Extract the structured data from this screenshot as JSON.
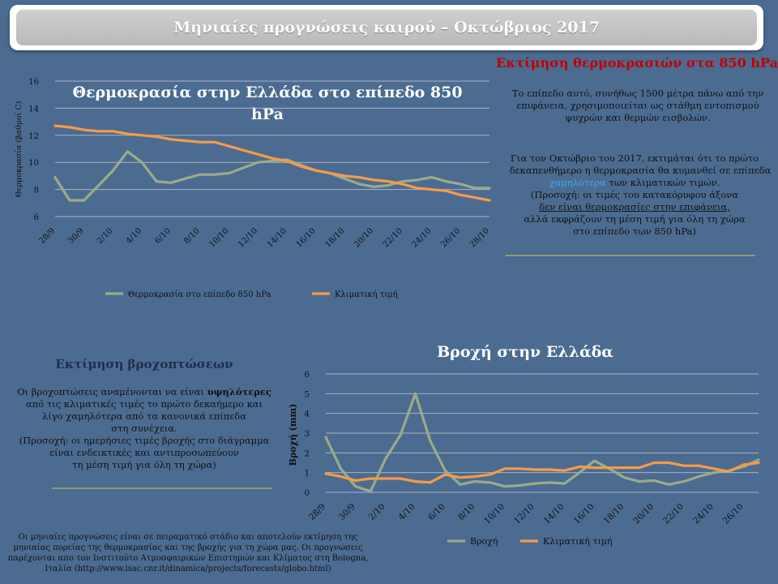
{
  "banner": {
    "title": "Μηνιαίες προγνώσεις καιρού – Οκτώβριος 2017"
  },
  "temp_panel": {
    "heading": "Εκτίμηση θερμοκρασιών στα 850 hPa",
    "para1": "Το επίπεδο αυτό, συνήθως 1500 μέτρα πάνω από την επιφάνεια, χρησιμοποιείται ως στάθμη  εντοπισμού ψυχρών και θερμών εισβολών.",
    "para2_lines": [
      "Για τον Οκτώβριο του 2017, εκτιμάται ότι το πρώτο",
      "δεκαπενθήμερο η θερμοκρασία θα κυμανθεί σε επίπεδα"
    ],
    "para2_highlight": "χαμηλότερα",
    "para2_after": " των κλιματικών τιμών.",
    "para2_note_lines": [
      "(Προσοχή: οι τιμές του  κατακόρυφου άξονα",
      "δεν είναι θερμοκρασίες στην επιφάνεια,",
      "αλλά εκφράζουν τη μέση τιμή για όλη τη χώρα",
      "στο επίπεδο των 850 hPa)"
    ]
  },
  "rain_panel": {
    "heading": "Εκτίμηση βροχοπτώσεων",
    "lead": "Οι βροχοπτώσεις αναμένονται να είναι ",
    "lead_bold": "υψηλότερες",
    "lines": [
      "από τις κλιματικές τιμές το πρώτο δεκαήμερο και",
      "λίγο χαμηλότερα από τα κανονικά επίπεδα",
      "στη συνέχεια.",
      "(Προσοχή: οι ημερήσιες τιμές βροχής στο διάγραμμα",
      "είναι ενδεικτικές και  αντιπροσωπεύουν",
      "τη μέση τιμή για όλη τη χώρα)"
    ]
  },
  "footnote": "Οι μηνιαίες προγνώσεις  είναι σε πειραματικό στάδιο και αποτελούν  εκτίμηση της μηνιαίας πορείας της θερμοκρασίας  και της βροχής για τη χώρα  μας. Οι προγνώσεις παρέχονται απο τον Ινστιτούτο Ατμοσφαιρικών  Επιστημών και Κλίματος στη Bologna, Ιταλία (http://www.isac.cnr.it/dinamica/projects/forecasts/globo.html)",
  "chart_data": [
    {
      "type": "line",
      "title": "Θερμοκρασία στην Ελλάδα στο επίπεδο 850 hPa",
      "ylabel": "Θερμοκρασία  (βαθμοί  C)",
      "xlabel": "",
      "ylim": [
        6,
        16
      ],
      "yticks": [
        6,
        8,
        10,
        12,
        14,
        16
      ],
      "x": [
        "28/9",
        "29/9",
        "30/9",
        "1/10",
        "2/10",
        "3/10",
        "4/10",
        "5/10",
        "6/10",
        "7/10",
        "8/10",
        "9/10",
        "10/10",
        "11/10",
        "12/10",
        "13/10",
        "14/10",
        "15/10",
        "16/10",
        "17/10",
        "18/10",
        "19/10",
        "20/10",
        "21/10",
        "22/10",
        "23/10",
        "24/10",
        "25/10",
        "26/10",
        "27/10",
        "28/10"
      ],
      "xtick_labels": [
        "28/9",
        "30/9",
        "2/10",
        "4/10",
        "6/10",
        "8/10",
        "10/10",
        "12/10",
        "14/10",
        "16/10",
        "18/10",
        "20/10",
        "22/10",
        "24/10",
        "26/10",
        "28/10"
      ],
      "grid": true,
      "legend": "bottom",
      "series": [
        {
          "name": "Θερμοκρασία  στο επίπεδο 850 hPa",
          "color": "#9aab88",
          "values": [
            8.9,
            7.2,
            7.2,
            8.3,
            9.4,
            10.8,
            10.0,
            8.6,
            8.5,
            8.8,
            9.1,
            9.1,
            9.2,
            9.6,
            10.0,
            10.1,
            10.2,
            9.8,
            9.4,
            9.2,
            8.8,
            8.4,
            8.2,
            8.3,
            8.6,
            8.7,
            8.9,
            8.6,
            8.4,
            8.1,
            8.1
          ]
        },
        {
          "name": "Κλιματική  τιμή",
          "color": "#f79a46",
          "values": [
            12.7,
            12.6,
            12.4,
            12.3,
            12.3,
            12.1,
            12.0,
            11.9,
            11.7,
            11.6,
            11.5,
            11.5,
            11.2,
            10.9,
            10.6,
            10.3,
            10.1,
            9.7,
            9.4,
            9.2,
            9.0,
            8.9,
            8.7,
            8.6,
            8.4,
            8.1,
            8.0,
            7.9,
            7.6,
            7.4,
            7.2
          ]
        }
      ]
    },
    {
      "type": "line",
      "title": "Βροχή στην Ελλάδα",
      "ylabel": "Βροχή (mm)",
      "xlabel": "",
      "ylim": [
        0,
        6
      ],
      "yticks": [
        0,
        1,
        2,
        3,
        4,
        5,
        6
      ],
      "x": [
        "28/9",
        "29/9",
        "30/9",
        "1/10",
        "2/10",
        "3/10",
        "4/10",
        "5/10",
        "6/10",
        "7/10",
        "8/10",
        "9/10",
        "10/10",
        "11/10",
        "12/10",
        "13/10",
        "14/10",
        "15/10",
        "16/10",
        "17/10",
        "18/10",
        "19/10",
        "20/10",
        "21/10",
        "22/10",
        "23/10",
        "24/10",
        "25/10",
        "26/10",
        "27/10"
      ],
      "xtick_labels": [
        "28/9",
        "30/9",
        "2/10",
        "4/10",
        "6/10",
        "8/10",
        "10/10",
        "12/10",
        "14/10",
        "16/10",
        "18/10",
        "20/10",
        "22/10",
        "24/10",
        "26/10"
      ],
      "grid": true,
      "legend": "bottom",
      "series": [
        {
          "name": "Βροχή",
          "color": "#9aab88",
          "values": [
            2.8,
            1.2,
            0.3,
            0.05,
            1.7,
            2.9,
            5.0,
            2.6,
            1.1,
            0.4,
            0.55,
            0.5,
            0.3,
            0.35,
            0.45,
            0.5,
            0.45,
            1.0,
            1.6,
            1.2,
            0.75,
            0.55,
            0.6,
            0.4,
            0.55,
            0.8,
            1.0,
            1.1,
            1.3,
            1.65
          ]
        },
        {
          "name": "Κλιματική  τιμή",
          "color": "#f79a46",
          "values": [
            0.95,
            0.8,
            0.6,
            0.7,
            0.7,
            0.7,
            0.55,
            0.5,
            0.9,
            0.75,
            0.8,
            0.9,
            1.2,
            1.2,
            1.15,
            1.15,
            1.1,
            1.3,
            1.25,
            1.25,
            1.25,
            1.25,
            1.5,
            1.5,
            1.35,
            1.35,
            1.2,
            1.05,
            1.4,
            1.5
          ]
        }
      ]
    }
  ]
}
